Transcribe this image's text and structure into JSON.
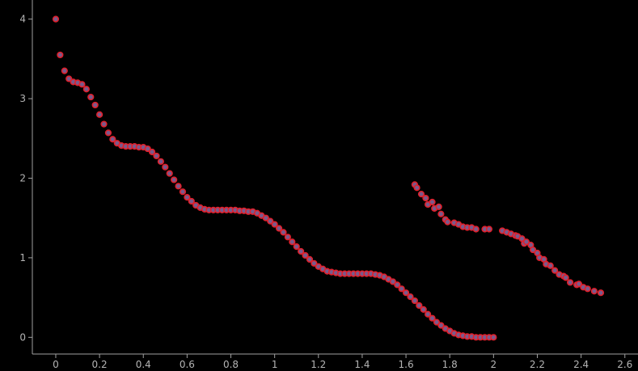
{
  "chart_data": {
    "type": "scatter",
    "xlim": [
      -0.107,
      2.66
    ],
    "ylim": [
      -0.21,
      4.24
    ],
    "xticks": [
      0,
      0.2,
      0.4,
      0.6,
      0.8,
      1,
      1.2,
      1.4,
      1.6,
      1.8,
      2,
      2.2,
      2.4,
      2.6
    ],
    "yticks": [
      0,
      1,
      2,
      3,
      4
    ],
    "series": [
      {
        "color": "#e0202c",
        "x": [
          0,
          0.02,
          0.04,
          0.06,
          0.08,
          0.1,
          0.12,
          0.14,
          0.16,
          0.18,
          0.2,
          0.22,
          0.24,
          0.26,
          0.28,
          0.3,
          0.32,
          0.34,
          0.36,
          0.38,
          0.4,
          0.42,
          0.44,
          0.46,
          0.48,
          0.5,
          0.52,
          0.54,
          0.56,
          0.58,
          0.6,
          0.62,
          0.64,
          0.66,
          0.68,
          0.7,
          0.72,
          0.74,
          0.76,
          0.78,
          0.8,
          0.82,
          0.84,
          0.86,
          0.88,
          0.9,
          0.92,
          0.94,
          0.96,
          0.98,
          1,
          1.02,
          1.04,
          1.06,
          1.08,
          1.1,
          1.12,
          1.14,
          1.16,
          1.18,
          1.2,
          1.22,
          1.24,
          1.26,
          1.28,
          1.3,
          1.32,
          1.34,
          1.36,
          1.38,
          1.4,
          1.42,
          1.44,
          1.46,
          1.48,
          1.5,
          1.52,
          1.54,
          1.56,
          1.58,
          1.6,
          1.62,
          1.64,
          1.66,
          1.68,
          1.7,
          1.72,
          1.74,
          1.76,
          1.78,
          1.8,
          1.82,
          1.84,
          1.86,
          1.88,
          1.9,
          1.92,
          1.94,
          1.96,
          1.98,
          2
        ],
        "y": [
          4,
          3.55,
          3.35,
          3.25,
          3.21,
          3.2,
          3.18,
          3.12,
          3.02,
          2.92,
          2.8,
          2.68,
          2.57,
          2.49,
          2.44,
          2.41,
          2.4,
          2.4,
          2.4,
          2.39,
          2.39,
          2.37,
          2.33,
          2.28,
          2.21,
          2.14,
          2.06,
          1.98,
          1.9,
          1.83,
          1.76,
          1.71,
          1.66,
          1.63,
          1.61,
          1.6,
          1.6,
          1.6,
          1.6,
          1.6,
          1.6,
          1.6,
          1.59,
          1.59,
          1.58,
          1.58,
          1.56,
          1.53,
          1.5,
          1.46,
          1.42,
          1.37,
          1.32,
          1.26,
          1.2,
          1.14,
          1.08,
          1.03,
          0.98,
          0.93,
          0.89,
          0.86,
          0.83,
          0.82,
          0.81,
          0.8,
          0.8,
          0.8,
          0.8,
          0.8,
          0.8,
          0.8,
          0.8,
          0.79,
          0.78,
          0.76,
          0.73,
          0.7,
          0.66,
          0.61,
          0.56,
          0.51,
          0.46,
          0.4,
          0.35,
          0.29,
          0.24,
          0.19,
          0.15,
          0.11,
          0.08,
          0.05,
          0.03,
          0.02,
          0.01,
          0.01,
          0,
          0,
          0,
          0,
          0
        ]
      },
      {
        "color": "#e0202c",
        "x": [
          1.64,
          1.65,
          1.67,
          1.69,
          1.7,
          1.72,
          1.73,
          1.75,
          1.76,
          1.78,
          1.79,
          1.82,
          1.84,
          1.86,
          1.88,
          1.9,
          1.92,
          1.96,
          1.98,
          2.04,
          2.06,
          2.08,
          2.1,
          2.11,
          2.13,
          2.14,
          2.15,
          2.17,
          2.18,
          2.2,
          2.21,
          2.23,
          2.24,
          2.26,
          2.28,
          2.3,
          2.32,
          2.33,
          2.35,
          2.38,
          2.39,
          2.41,
          2.43,
          2.46,
          2.49
        ],
        "y": [
          1.92,
          1.88,
          1.8,
          1.75,
          1.67,
          1.7,
          1.62,
          1.64,
          1.55,
          1.48,
          1.45,
          1.44,
          1.42,
          1.39,
          1.38,
          1.38,
          1.36,
          1.36,
          1.36,
          1.34,
          1.32,
          1.3,
          1.28,
          1.27,
          1.24,
          1.18,
          1.2,
          1.16,
          1.1,
          1.06,
          1,
          0.98,
          0.92,
          0.9,
          0.84,
          0.79,
          0.77,
          0.75,
          0.69,
          0.66,
          0.67,
          0.63,
          0.61,
          0.58,
          0.56
        ]
      }
    ]
  }
}
